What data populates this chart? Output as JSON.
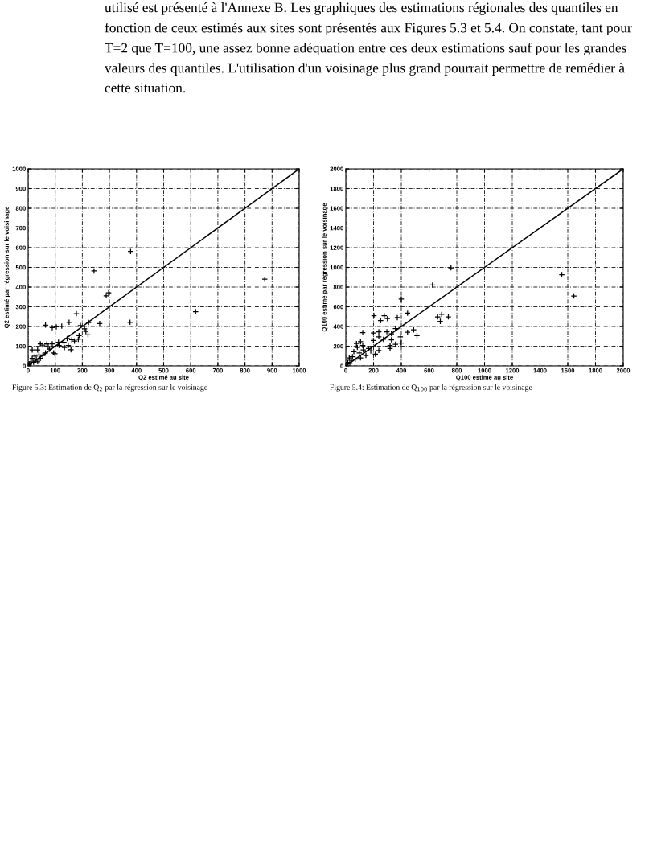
{
  "chart_data": [
    {
      "type": "scatter",
      "xlabel": "Q2 estimé au site",
      "ylabel": "Q2 estimé par régression sur le voisinage",
      "xlim": [
        0,
        1000
      ],
      "ylim": [
        0,
        1000
      ],
      "xticks": [
        0,
        100,
        200,
        300,
        400,
        500,
        600,
        700,
        800,
        900,
        1000
      ],
      "yticks": [
        0,
        100,
        200,
        300,
        400,
        500,
        600,
        700,
        800,
        900,
        1000
      ],
      "grid": true,
      "marker": "cross",
      "series": [
        {
          "color": "#000000",
          "x": [
            243,
            288,
            297,
            376,
            178,
            264,
            223,
            193,
            151,
            124,
            104,
            89,
            64,
            213,
            208,
            188,
            221,
            185,
            161,
            171,
            144,
            132,
            158,
            134,
            114,
            99,
            94,
            89,
            74,
            45,
            54,
            15,
            35,
            64,
            40,
            25,
            15,
            30,
            45,
            10,
            20,
            35,
            5,
            54,
            79,
            69,
            112,
            148,
            873,
            618,
            378
          ],
          "values": [
            482,
            356,
            371,
            221,
            265,
            215,
            220,
            205,
            221,
            202,
            198,
            194,
            207,
            175,
            188,
            154,
            158,
            135,
            133,
            126,
            139,
            120,
            82,
            93,
            104,
            62,
            66,
            112,
            97,
            112,
            106,
            81,
            81,
            66,
            56,
            49,
            38,
            34,
            38,
            21,
            18,
            21,
            9,
            53,
            85,
            112,
            120,
            104,
            440,
            275,
            581
          ]
        },
        {
          "type": "line",
          "color": "#000000",
          "marker": "none",
          "x": [
            0,
            1000
          ],
          "values": [
            0,
            1000
          ]
        }
      ],
      "annotations": [
        "utilisé est présenté à l'Annexe B. Les graphiques des estimations régionales des quantiles en fonction de ceux estimés aux sites sont présentés aux Figures 5.3 et 5.4. On constate, tant pour T=2 que T=100, une assez bonne adéquation entre ces deux estimations sauf pour les grandes valeurs des quantiles. L'utilisation d'un voisinage plus grand pourrait permettre de remédier à cette situation.",
        "Figure 5.3: Estimation de Q$_{2}$ par la régression sur le voisinage"
      ]
    },
    {
      "type": "scatter",
      "xlabel": "Q100 estimé au site",
      "ylabel": "Q100 estimé par régression sur le voisinage",
      "xlim": [
        0,
        2000
      ],
      "ylim": [
        0,
        2000
      ],
      "xticks": [
        0,
        200,
        400,
        600,
        800,
        1000,
        1200,
        1400,
        1600,
        1800,
        2000
      ],
      "yticks": [
        0,
        200,
        400,
        600,
        800,
        1000,
        1200,
        1400,
        1600,
        1800,
        2000
      ],
      "grid": true,
      "marker": "cross",
      "series": [
        {
          "color": "#000000",
          "x": [
            758,
            625,
            400,
            445,
            371,
            203,
            277,
            300,
            251,
            122,
            199,
            238,
            296,
            329,
            358,
            445,
            489,
            513,
            393,
            399,
            358,
            319,
            319,
            329,
            271,
            238,
            199,
            106,
            77,
            122,
            83,
            126,
            164,
            213,
            238,
            180,
            58,
            97,
            48,
            25,
            39,
            68,
            14,
            29,
            106,
            145,
            662,
            691,
            681,
            739,
            1557,
            1644
          ],
          "values": [
            995,
            821,
            679,
            535,
            490,
            510,
            510,
            480,
            460,
            338,
            333,
            346,
            346,
            326,
            379,
            341,
            366,
            308,
            295,
            232,
            220,
            207,
            177,
            265,
            270,
            295,
            258,
            245,
            227,
            207,
            187,
            162,
            177,
            119,
            157,
            152,
            144,
            131,
            93,
            81,
            56,
            68,
            35,
            25,
            81,
            106,
            497,
            523,
            452,
            497,
            926,
            710
          ]
        },
        {
          "type": "line",
          "color": "#000000",
          "marker": "none",
          "x": [
            0,
            2000
          ],
          "values": [
            0,
            2000
          ]
        }
      ],
      "annotations": [
        "Figure 5.4: Estimation de Q$_{100}$ par la régression sur le voisinage"
      ]
    }
  ]
}
